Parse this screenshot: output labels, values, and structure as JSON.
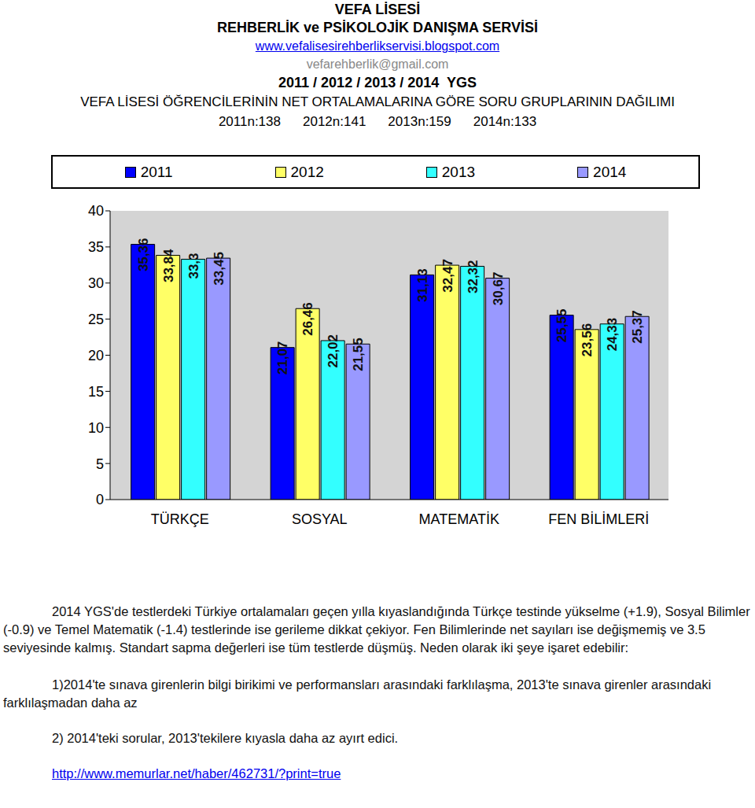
{
  "header": {
    "school": "VEFA LİSESİ",
    "service": "REHBERLİK ve PSİKOLOJİK DANIŞMA SERVİSİ",
    "website": "www.vefalisesirehberlikservisi.blogspot.com",
    "email": "vefarehberlik@gmail.com",
    "years": "2011 / 2012 / 2013 / 2014  YGS",
    "subtitle": "VEFA LİSESİ ÖĞRENCİLERİNİN NET ORTALAMALARINA GÖRE SORU GRUPLARININ DAĞILIMI",
    "counts": [
      "2011n:138",
      "2012n:141",
      "2013n:159",
      "2014n:133"
    ]
  },
  "chart_data": {
    "type": "bar",
    "categories": [
      "TÜRKÇE",
      "SOSYAL",
      "MATEMATİK",
      "FEN BİLİMLERİ"
    ],
    "series": [
      {
        "name": "2011",
        "color": "#0000ff",
        "values": [
          35.36,
          21.07,
          31.13,
          25.55
        ],
        "value_labels": [
          "35,36",
          "21,07",
          "31,13",
          "25,55"
        ]
      },
      {
        "name": "2012",
        "color": "#ffff66",
        "values": [
          33.84,
          26.46,
          32.47,
          23.56
        ],
        "value_labels": [
          "33,84",
          "26,46",
          "32,47",
          "23,56"
        ]
      },
      {
        "name": "2013",
        "color": "#33ffff",
        "values": [
          33.3,
          22.02,
          32.32,
          24.33
        ],
        "value_labels": [
          "33,3",
          "22,02",
          "32,32",
          "24,33"
        ]
      },
      {
        "name": "2014",
        "color": "#9999ff",
        "values": [
          33.45,
          21.55,
          30.67,
          25.37
        ],
        "value_labels": [
          "33,45",
          "21,55",
          "30,67",
          "25,37"
        ]
      }
    ],
    "ylim": [
      0,
      40
    ],
    "yticks": [
      0,
      5,
      10,
      15,
      20,
      25,
      30,
      35,
      40
    ],
    "grid": false,
    "legend": "top",
    "data_labels": true
  },
  "notes": {
    "paragraph": "2014 YGS'de testlerdeki Türkiye ortalamaları geçen yılla kıyaslandığında Türkçe testinde yükselme (+1.9), Sosyal Bilimler (-0.9) ve Temel Matematik (-1.4) testlerinde ise gerileme dikkat çekiyor. Fen Bilimlerinde net sayıları ise değişmemiş ve 3.5 seviyesinde kalmış. Standart sapma değerleri ise tüm testlerde düşmüş. Neden olarak iki şeye işaret edebilir:",
    "items": [
      "1)2014'te sınava girenlerin bilgi birikimi ve performansları arasındaki farklılaşma, 2013'te sınava girenler arasındaki farklılaşmadan daha az",
      "2) 2014'teki sorular, 2013'tekilere kıyasla daha az ayırt edici."
    ],
    "source": "http://www.memurlar.net/haber/462731/?print=true"
  }
}
